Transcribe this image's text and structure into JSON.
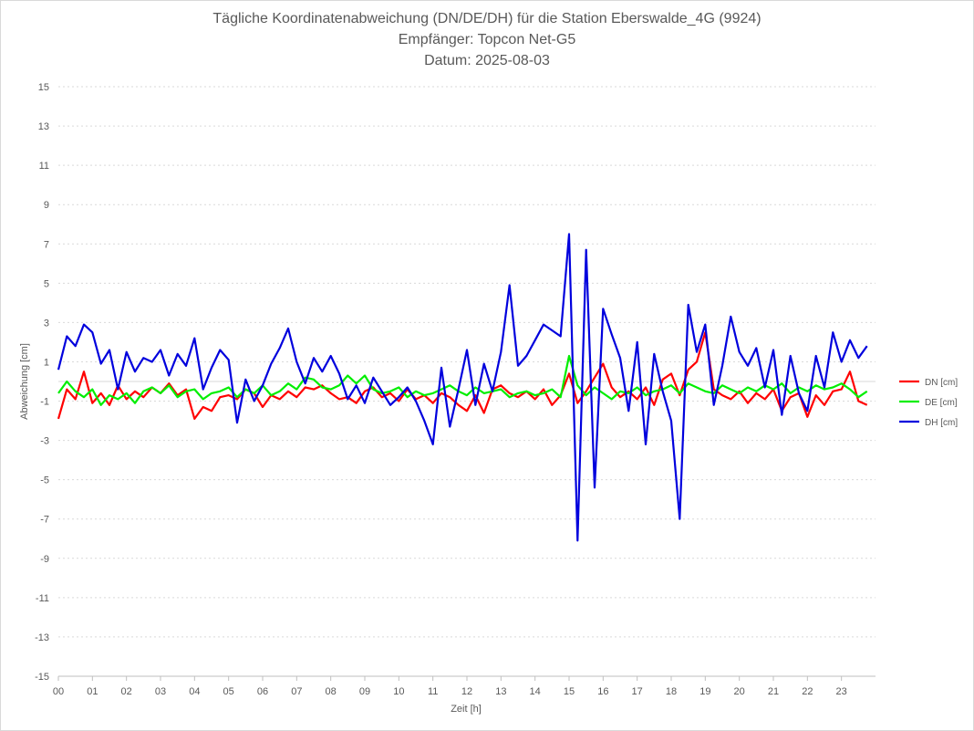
{
  "title": {
    "line1": "Tägliche Koordinatenabweichung (DN/DE/DH) für die Station Eberswalde_4G (9924)",
    "line2": "Empfänger: Topcon Net-G5",
    "line3": "Datum: 2025-08-03"
  },
  "chart_data": {
    "type": "line",
    "title": "Tägliche Koordinatenabweichung (DN/DE/DH) für die Station Eberswalde_4G (9924)",
    "subtitle": [
      "Empfänger: Topcon Net-G5",
      "Datum: 2025-08-03"
    ],
    "xlabel": "Zeit [h]",
    "ylabel": "Abweichung [cm]",
    "xlim": [
      0,
      24
    ],
    "ylim": [
      -15,
      15
    ],
    "x_ticks": [
      0,
      1,
      2,
      3,
      4,
      5,
      6,
      7,
      8,
      9,
      10,
      11,
      12,
      13,
      14,
      15,
      16,
      17,
      18,
      19,
      20,
      21,
      22,
      23
    ],
    "x_tick_labels": [
      "00",
      "01",
      "02",
      "03",
      "04",
      "05",
      "06",
      "07",
      "08",
      "09",
      "10",
      "11",
      "12",
      "13",
      "14",
      "15",
      "16",
      "17",
      "18",
      "19",
      "20",
      "21",
      "22",
      "23"
    ],
    "y_ticks": [
      15,
      13,
      11,
      9,
      7,
      5,
      3,
      1,
      -1,
      -3,
      -5,
      -7,
      -9,
      -11,
      -13,
      -15
    ],
    "y_tick_labels": [
      "15",
      "13",
      "11",
      "9",
      "7",
      "5",
      "3",
      "1",
      "-1",
      "-3",
      "-5",
      "-7",
      "-9",
      "-11",
      "-13",
      "-15"
    ],
    "grid": true,
    "legend_position": "right",
    "series": [
      {
        "name": "DN [cm]",
        "color": "#ff0000",
        "x": [
          0,
          0.25,
          0.5,
          0.75,
          1,
          1.25,
          1.5,
          1.75,
          2,
          2.25,
          2.5,
          2.75,
          3,
          3.25,
          3.5,
          3.75,
          4,
          4.25,
          4.5,
          4.75,
          5,
          5.25,
          5.5,
          5.75,
          6,
          6.25,
          6.5,
          6.75,
          7,
          7.25,
          7.5,
          7.75,
          8,
          8.25,
          8.5,
          8.75,
          9,
          9.25,
          9.5,
          9.75,
          10,
          10.25,
          10.5,
          10.75,
          11,
          11.25,
          11.5,
          11.75,
          12,
          12.25,
          12.5,
          12.75,
          13,
          13.25,
          13.5,
          13.75,
          14,
          14.25,
          14.5,
          14.75,
          15,
          15.25,
          15.5,
          15.75,
          16,
          16.25,
          16.5,
          16.75,
          17,
          17.25,
          17.5,
          17.75,
          18,
          18.25,
          18.5,
          18.75,
          19,
          19.25,
          19.5,
          19.75,
          20,
          20.25,
          20.5,
          20.75,
          21,
          21.25,
          21.5,
          21.75,
          22,
          22.25,
          22.5,
          22.75,
          23,
          23.25,
          23.5,
          23.75
        ],
        "values": [
          -1.9,
          -0.4,
          -0.9,
          0.5,
          -1.1,
          -0.6,
          -1.2,
          -0.2,
          -0.9,
          -0.5,
          -0.8,
          -0.3,
          -0.6,
          -0.1,
          -0.7,
          -0.4,
          -1.9,
          -1.3,
          -1.5,
          -0.8,
          -0.7,
          -0.9,
          -0.4,
          -0.6,
          -1.3,
          -0.7,
          -0.9,
          -0.5,
          -0.8,
          -0.3,
          -0.4,
          -0.2,
          -0.6,
          -0.9,
          -0.8,
          -1.1,
          -0.5,
          -0.3,
          -0.8,
          -0.6,
          -1.0,
          -0.4,
          -0.9,
          -0.7,
          -1.1,
          -0.6,
          -0.8,
          -1.2,
          -1.5,
          -0.7,
          -1.6,
          -0.4,
          -0.2,
          -0.6,
          -0.8,
          -0.5,
          -0.9,
          -0.4,
          -1.2,
          -0.7,
          0.4,
          -1.1,
          -0.5,
          0.2,
          0.9,
          -0.3,
          -0.8,
          -0.5,
          -0.9,
          -0.3,
          -1.2,
          0.1,
          0.4,
          -0.7,
          0.6,
          1.0,
          2.5,
          -0.4,
          -0.7,
          -0.9,
          -0.5,
          -1.1,
          -0.6,
          -0.9,
          -0.4,
          -1.5,
          -0.8,
          -0.6,
          -1.8,
          -0.7,
          -1.2,
          -0.5,
          -0.4,
          0.5,
          -1.0,
          -1.2
        ]
      },
      {
        "name": "DE [cm]",
        "color": "#00ee00",
        "x": [
          0,
          0.25,
          0.5,
          0.75,
          1,
          1.25,
          1.5,
          1.75,
          2,
          2.25,
          2.5,
          2.75,
          3,
          3.25,
          3.5,
          3.75,
          4,
          4.25,
          4.5,
          4.75,
          5,
          5.25,
          5.5,
          5.75,
          6,
          6.25,
          6.5,
          6.75,
          7,
          7.25,
          7.5,
          7.75,
          8,
          8.25,
          8.5,
          8.75,
          9,
          9.25,
          9.5,
          9.75,
          10,
          10.25,
          10.5,
          10.75,
          11,
          11.25,
          11.5,
          11.75,
          12,
          12.25,
          12.5,
          12.75,
          13,
          13.25,
          13.5,
          13.75,
          14,
          14.25,
          14.5,
          14.75,
          15,
          15.25,
          15.5,
          15.75,
          16,
          16.25,
          16.5,
          16.75,
          17,
          17.25,
          17.5,
          17.75,
          18,
          18.25,
          18.5,
          18.75,
          19,
          19.25,
          19.5,
          19.75,
          20,
          20.25,
          20.5,
          20.75,
          21,
          21.25,
          21.5,
          21.75,
          22,
          22.25,
          22.5,
          22.75,
          23,
          23.25,
          23.5,
          23.75
        ],
        "values": [
          -0.6,
          0.0,
          -0.5,
          -0.8,
          -0.4,
          -1.2,
          -0.7,
          -0.9,
          -0.6,
          -1.1,
          -0.5,
          -0.3,
          -0.6,
          -0.2,
          -0.8,
          -0.5,
          -0.4,
          -0.9,
          -0.6,
          -0.5,
          -0.3,
          -0.8,
          -0.4,
          -0.6,
          -0.2,
          -0.7,
          -0.5,
          -0.1,
          -0.4,
          0.2,
          0.1,
          -0.3,
          -0.4,
          -0.2,
          0.3,
          -0.1,
          0.3,
          -0.4,
          -0.6,
          -0.5,
          -0.3,
          -0.8,
          -0.5,
          -0.7,
          -0.6,
          -0.4,
          -0.2,
          -0.5,
          -0.7,
          -0.3,
          -0.6,
          -0.5,
          -0.4,
          -0.8,
          -0.6,
          -0.5,
          -0.7,
          -0.6,
          -0.4,
          -0.8,
          1.3,
          -0.2,
          -0.7,
          -0.3,
          -0.6,
          -0.9,
          -0.5,
          -0.6,
          -0.3,
          -0.7,
          -0.5,
          -0.4,
          -0.2,
          -0.6,
          -0.1,
          -0.3,
          -0.5,
          -0.6,
          -0.2,
          -0.4,
          -0.6,
          -0.3,
          -0.5,
          -0.2,
          -0.4,
          -0.1,
          -0.6,
          -0.3,
          -0.5,
          -0.2,
          -0.4,
          -0.3,
          -0.1,
          -0.4,
          -0.8,
          -0.5
        ]
      },
      {
        "name": "DH [cm]",
        "color": "#0000dd",
        "x": [
          0,
          0.25,
          0.5,
          0.75,
          1,
          1.25,
          1.5,
          1.75,
          2,
          2.25,
          2.5,
          2.75,
          3,
          3.25,
          3.5,
          3.75,
          4,
          4.25,
          4.5,
          4.75,
          5,
          5.25,
          5.5,
          5.75,
          6,
          6.25,
          6.5,
          6.75,
          7,
          7.25,
          7.5,
          7.75,
          8,
          8.25,
          8.5,
          8.75,
          9,
          9.25,
          9.5,
          9.75,
          10,
          10.25,
          10.5,
          10.75,
          11,
          11.25,
          11.5,
          11.75,
          12,
          12.25,
          12.5,
          12.75,
          13,
          13.25,
          13.5,
          13.75,
          14,
          14.25,
          14.5,
          14.75,
          15,
          15.25,
          15.5,
          15.75,
          16,
          16.25,
          16.5,
          16.75,
          17,
          17.25,
          17.5,
          17.75,
          18,
          18.25,
          18.5,
          18.75,
          19,
          19.25,
          19.5,
          19.75,
          20,
          20.25,
          20.5,
          20.75,
          21,
          21.25,
          21.5,
          21.75,
          22,
          22.25,
          22.5,
          22.75,
          23,
          23.25,
          23.5,
          23.75
        ],
        "values": [
          0.6,
          2.3,
          1.8,
          2.9,
          2.5,
          0.9,
          1.6,
          -0.4,
          1.5,
          0.5,
          1.2,
          1.0,
          1.6,
          0.3,
          1.4,
          0.8,
          2.2,
          -0.4,
          0.7,
          1.6,
          1.1,
          -2.1,
          0.1,
          -1.0,
          -0.2,
          0.9,
          1.7,
          2.7,
          1.0,
          -0.1,
          1.2,
          0.5,
          1.3,
          0.4,
          -0.9,
          -0.2,
          -1.1,
          0.2,
          -0.5,
          -1.2,
          -0.8,
          -0.3,
          -1.0,
          -2.0,
          -3.2,
          0.7,
          -2.3,
          -0.4,
          1.6,
          -1.2,
          0.9,
          -0.5,
          1.5,
          4.9,
          0.8,
          1.3,
          2.1,
          2.9,
          2.6,
          2.3,
          7.5,
          -8.1,
          6.7,
          -5.4,
          3.7,
          2.4,
          1.2,
          -1.5,
          2.0,
          -3.2,
          1.4,
          -0.5,
          -2.0,
          -7.0,
          3.9,
          1.5,
          2.9,
          -1.2,
          0.8,
          3.3,
          1.5,
          0.8,
          1.7,
          -0.3,
          1.6,
          -1.7,
          1.3,
          -0.6,
          -1.5,
          1.3,
          -0.3,
          2.5,
          1.0,
          2.1,
          1.2,
          1.8
        ]
      }
    ]
  }
}
